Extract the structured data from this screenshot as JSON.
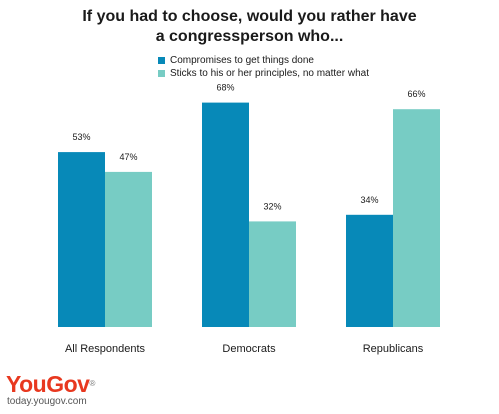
{
  "colors": {
    "series1": "#0789b8",
    "series2": "#77ccc4",
    "brand": "#e8381f"
  },
  "chart_data": {
    "type": "bar",
    "title": "If you had to choose, would you rather have a congressperson who...",
    "title_lines": [
      "If you had to choose, would you rather have",
      "a congressperson who..."
    ],
    "categories": [
      "All Respondents",
      "Democrats",
      "Republicans"
    ],
    "series": [
      {
        "name": "Compromises to get things done",
        "values": [
          53,
          68,
          34
        ],
        "labels": [
          "53%",
          "68%",
          "34%"
        ]
      },
      {
        "name": "Sticks to his or her principles, no matter what",
        "values": [
          47,
          32,
          66
        ],
        "labels": [
          "47%",
          "32%",
          "66%"
        ]
      }
    ],
    "ylim": [
      0,
      100
    ],
    "xlabel": "",
    "ylabel": "",
    "grid": false,
    "legend_position": "top-center"
  },
  "branding": {
    "logo_text": "YouGov",
    "url": "today.yougov.com"
  }
}
